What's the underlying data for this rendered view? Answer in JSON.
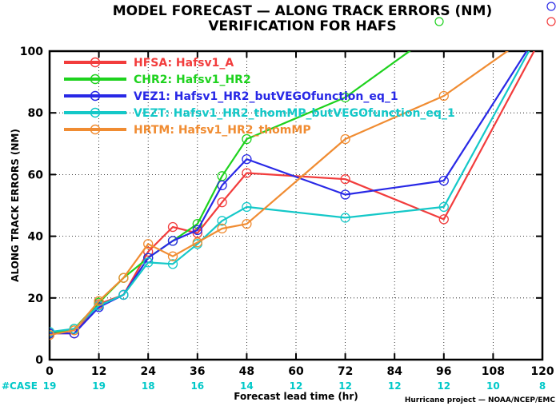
{
  "header": {
    "title": "MODEL FORECAST — ALONG TRACK ERRORS (NM)",
    "subtitle": "VERIFICATION FOR HAFS"
  },
  "colors": {
    "HFSA": "#f23c3c",
    "CHR2": "#1ed21e",
    "VEZ1": "#2828e6",
    "VEZT": "#14c8c8",
    "HRTM": "#f08c32",
    "case": "#00c8c8"
  },
  "credit": "Hurricane project — NOAA/NCEP/EMC",
  "case_label": "#CASE",
  "chart_data": {
    "type": "line",
    "title": "MODEL FORECAST — ALONG TRACK ERRORS (NM)",
    "subtitle": "VERIFICATION FOR HAFS",
    "xlabel": "Forecast lead time (hr)",
    "ylabel": "ALONG TRACK ERRORS (NM)",
    "xlim": [
      0,
      120
    ],
    "ylim": [
      0,
      100
    ],
    "xticks": [
      0,
      12,
      24,
      36,
      48,
      60,
      72,
      84,
      96,
      108,
      120
    ],
    "yticks": [
      0,
      20,
      40,
      60,
      80,
      100
    ],
    "x": [
      0,
      6,
      12,
      18,
      24,
      30,
      36,
      42,
      48,
      72,
      96,
      120
    ],
    "legend_position": "top-left",
    "series": [
      {
        "id": "HFSA",
        "name": "HFSA: Hafsv1_A",
        "values": [
          8.5,
          8.5,
          18,
          21,
          35,
          43,
          41,
          51,
          60.5,
          58.5,
          45.5,
          105
        ]
      },
      {
        "id": "CHR2",
        "name": "CHR2: Hafsv1_HR2",
        "values": [
          8.5,
          10,
          18.5,
          26.5,
          33,
          38.5,
          44,
          59.5,
          71.5,
          85,
          108,
          108
        ]
      },
      {
        "id": "VEZ1",
        "name": "VEZ1: Hafsv1_HR2_butVEGOfunction_eq_1",
        "values": [
          8.5,
          8.5,
          17,
          21,
          33,
          38.5,
          42,
          56.5,
          65,
          53.5,
          58,
          108
        ]
      },
      {
        "id": "VEZT",
        "name": "VEZT: Hafsv1_HR2_thomMP_butVEGOfunction_eq_1",
        "values": [
          9,
          10,
          17.5,
          21,
          31.5,
          31,
          37.5,
          45,
          49.5,
          46,
          49.5,
          108
        ]
      },
      {
        "id": "HRTM",
        "name": "HRTM: Hafsv1_HR2_thomMP",
        "values": [
          8,
          9.5,
          19,
          26.5,
          37.5,
          33.5,
          38,
          42.5,
          44,
          71.5,
          85.5,
          108
        ]
      }
    ],
    "case_counts": [
      {
        "x": 0,
        "n": "19"
      },
      {
        "x": 12,
        "n": "19"
      },
      {
        "x": 24,
        "n": "18"
      },
      {
        "x": 36,
        "n": "16"
      },
      {
        "x": 48,
        "n": "14"
      },
      {
        "x": 60,
        "n": "12"
      },
      {
        "x": 72,
        "n": "12"
      },
      {
        "x": 84,
        "n": "12"
      },
      {
        "x": 96,
        "n": "12"
      },
      {
        "x": 108,
        "n": "10"
      },
      {
        "x": 120,
        "n": "8"
      }
    ]
  }
}
